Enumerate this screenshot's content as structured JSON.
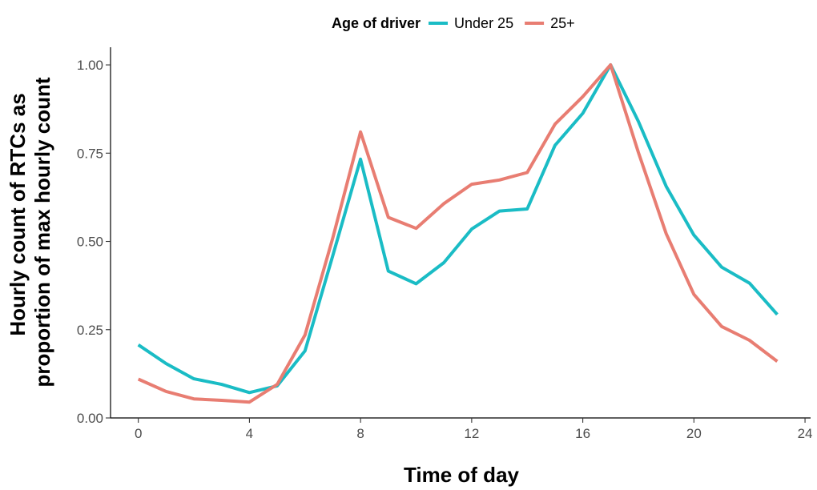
{
  "chart_data": {
    "type": "line",
    "xlabel": "Time of day",
    "ylabel_lines": [
      "Hourly count of RTCs as",
      "proportion of max hourly count"
    ],
    "xlim": [
      -1,
      24.2
    ],
    "ylim": [
      0,
      1.05
    ],
    "x_ticks": [
      0,
      4,
      8,
      12,
      16,
      20,
      24
    ],
    "x_tick_labels": [
      "0",
      "4",
      "8",
      "12",
      "16",
      "20",
      "24"
    ],
    "y_ticks": [
      0,
      0.25,
      0.5,
      0.75,
      1.0
    ],
    "y_tick_labels": [
      "0.00",
      "0.25",
      "0.50",
      "0.75",
      "1.00"
    ],
    "grid": false,
    "legend": {
      "title": "Age of driver",
      "position": "top"
    },
    "x": [
      0,
      1,
      2,
      3,
      4,
      5,
      6,
      7,
      8,
      9,
      10,
      11,
      12,
      13,
      14,
      15,
      16,
      17,
      18,
      19,
      20,
      21,
      22,
      23
    ],
    "series": [
      {
        "name": "Under 25",
        "color": "#1ABCC5",
        "values": [
          0.207,
          0.154,
          0.111,
          0.095,
          0.072,
          0.091,
          0.19,
          0.46,
          0.733,
          0.416,
          0.38,
          0.44,
          0.535,
          0.586,
          0.592,
          0.772,
          0.863,
          1.0,
          0.84,
          0.656,
          0.518,
          0.427,
          0.382,
          0.293
        ]
      },
      {
        "name": "25+",
        "color": "#E87D72",
        "values": [
          0.11,
          0.075,
          0.054,
          0.05,
          0.045,
          0.095,
          0.235,
          0.51,
          0.81,
          0.568,
          0.537,
          0.607,
          0.662,
          0.674,
          0.695,
          0.832,
          0.91,
          1.0,
          0.752,
          0.522,
          0.35,
          0.259,
          0.22,
          0.16
        ]
      }
    ]
  }
}
